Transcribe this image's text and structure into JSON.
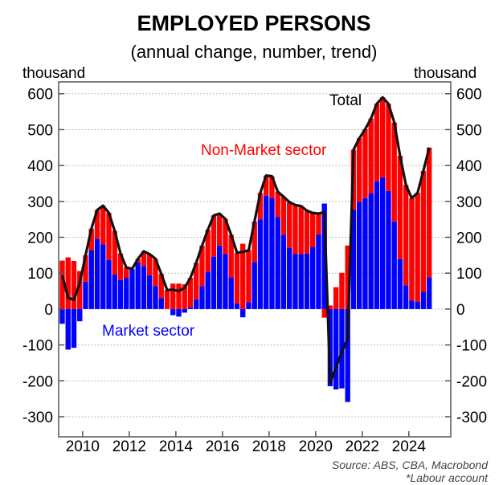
{
  "chart_data": {
    "type": "bar",
    "subtype": "stacked bar with total line",
    "title": "EMPLOYED PERSONS",
    "subtitle": "(annual change, number, trend)",
    "ylabel_left": "thousand",
    "ylabel_right": "thousand",
    "xlabel": "",
    "ylim": [
      -356,
      633
    ],
    "xlim": [
      2008.97,
      2025.8
    ],
    "x_start": 2009.125,
    "x_step": 0.25,
    "yticks": [
      -300,
      -200,
      -100,
      0,
      100,
      200,
      300,
      400,
      500,
      600
    ],
    "xticks": [
      2010,
      2012,
      2014,
      2016,
      2018,
      2020,
      2022,
      2024
    ],
    "grid": true,
    "annotations": {
      "total": "Total",
      "non_market": "Non-Market sector",
      "market": "Market sector"
    },
    "source": "Source: ABS, CBA, Macrobond",
    "footnote": "*Labour account",
    "colors": {
      "market": "#0000ff",
      "non_market": "#ff0000",
      "total": "#111111"
    },
    "series": [
      {
        "name": "Market sector",
        "values": [
          -41,
          -113,
          -108,
          -34,
          76,
          164,
          196,
          180,
          137,
          96,
          81,
          87,
          110,
          130,
          120,
          94,
          64,
          30,
          0,
          -17,
          -21,
          -10,
          5,
          27,
          64,
          104,
          146,
          177,
          153,
          88,
          16,
          -23,
          19,
          131,
          250,
          316,
          310,
          256,
          207,
          170,
          153,
          153,
          155,
          173,
          208,
          294,
          -215,
          -224,
          -221,
          -259,
          277,
          299,
          309,
          322,
          356,
          367,
          329,
          244,
          140,
          66,
          24,
          20,
          48,
          88
        ]
      },
      {
        "name": "Non-Market sector",
        "values": [
          135,
          144,
          134,
          106,
          74,
          60,
          80,
          108,
          131,
          122,
          74,
          29,
          2,
          10,
          41,
          59,
          76,
          68,
          53,
          71,
          71,
          69,
          82,
          102,
          113,
          117,
          115,
          89,
          98,
          119,
          141,
          182,
          145,
          113,
          74,
          56,
          60,
          71,
          106,
          128,
          137,
          134,
          119,
          95,
          58,
          -24,
          10,
          61,
          101,
          177,
          167,
          177,
          192,
          209,
          216,
          223,
          243,
          276,
          287,
          280,
          285,
          304,
          337,
          362
        ]
      },
      {
        "name": "Total",
        "values": [
          94,
          31,
          26,
          72,
          150,
          224,
          276,
          288,
          268,
          218,
          155,
          116,
          112,
          140,
          161,
          153,
          140,
          98,
          53,
          54,
          50,
          59,
          87,
          129,
          177,
          221,
          261,
          266,
          251,
          207,
          157,
          159,
          164,
          244,
          324,
          372,
          370,
          327,
          313,
          298,
          290,
          287,
          274,
          268,
          266,
          270,
          -205,
          -163,
          -120,
          -82,
          444,
          476,
          501,
          531,
          572,
          590,
          572,
          520,
          427,
          346,
          309,
          324,
          385,
          450
        ]
      }
    ]
  }
}
